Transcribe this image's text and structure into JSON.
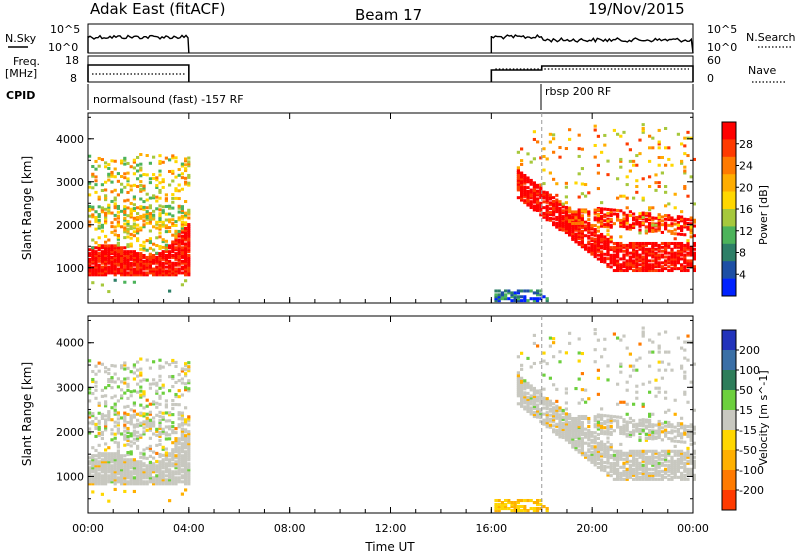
{
  "header": {
    "radar": "Adak East (fitACF)",
    "beam": "Beam 17",
    "date": "19/Nov/2015"
  },
  "strips": {
    "nsky_label": "N.Sky",
    "nsky_ticks": [
      "10^5",
      "10^0"
    ],
    "nsearch_label": "N.Search",
    "freq_label_1": "Freq.",
    "freq_label_2": "[MHz]",
    "freq_ticks": [
      "18",
      "8"
    ],
    "nave_label": "Nave",
    "nave_ticks": [
      "60",
      "0"
    ],
    "cpid_label": "CPID",
    "cpid_segments": [
      {
        "label": "normalsound (fast) -157 RF",
        "start_h": 0
      },
      {
        "label": "rbsp 200 RF",
        "start_h": 18
      }
    ]
  },
  "chart_data": [
    {
      "type": "heatmap",
      "name": "power",
      "xlabel": "Time UT",
      "ylabel": "Slant Range [km]",
      "colorbar_label": "Power [dB]",
      "colorbar_ticks": [
        "28",
        "24",
        "20",
        "16",
        "12",
        "8",
        "4"
      ],
      "colorbar_colors": [
        "#ff0000",
        "#ff3a00",
        "#ff7a00",
        "#ffad00",
        "#ffd700",
        "#a6c83c",
        "#4cb35a",
        "#2d7f67",
        "#1d4fa5",
        "#0022ff"
      ],
      "xlim": [
        0,
        24
      ],
      "ylim": [
        180,
        4600
      ],
      "x_ticks": [
        "00:00",
        "04:00",
        "08:00",
        "12:00",
        "16:00",
        "20:00",
        "00:00"
      ],
      "y_ticks": [
        "1000",
        "2000",
        "3000",
        "4000"
      ],
      "data_intervals_h": [
        [
          0,
          4
        ],
        [
          16,
          24
        ]
      ]
    },
    {
      "type": "heatmap",
      "name": "velocity",
      "xlabel": "Time UT",
      "ylabel": "Slant Range [km]",
      "colorbar_label": "Velocity [m s^-1]",
      "colorbar_ticks": [
        "200",
        "100",
        "50",
        "15",
        "-15",
        "-50",
        "-100",
        "-200"
      ],
      "colorbar_colors": [
        "#2233bb",
        "#3a6fa6",
        "#2e7d5a",
        "#6ccf3d",
        "#c8c8c0",
        "#ffd700",
        "#ffb000",
        "#ff7a00",
        "#ff3a00"
      ],
      "xlim": [
        0,
        24
      ],
      "ylim": [
        180,
        4600
      ],
      "x_ticks": [
        "00:00",
        "04:00",
        "08:00",
        "12:00",
        "16:00",
        "20:00",
        "00:00"
      ],
      "y_ticks": [
        "1000",
        "2000",
        "3000",
        "4000"
      ],
      "data_intervals_h": [
        [
          0,
          4
        ],
        [
          16,
          24
        ]
      ]
    }
  ]
}
